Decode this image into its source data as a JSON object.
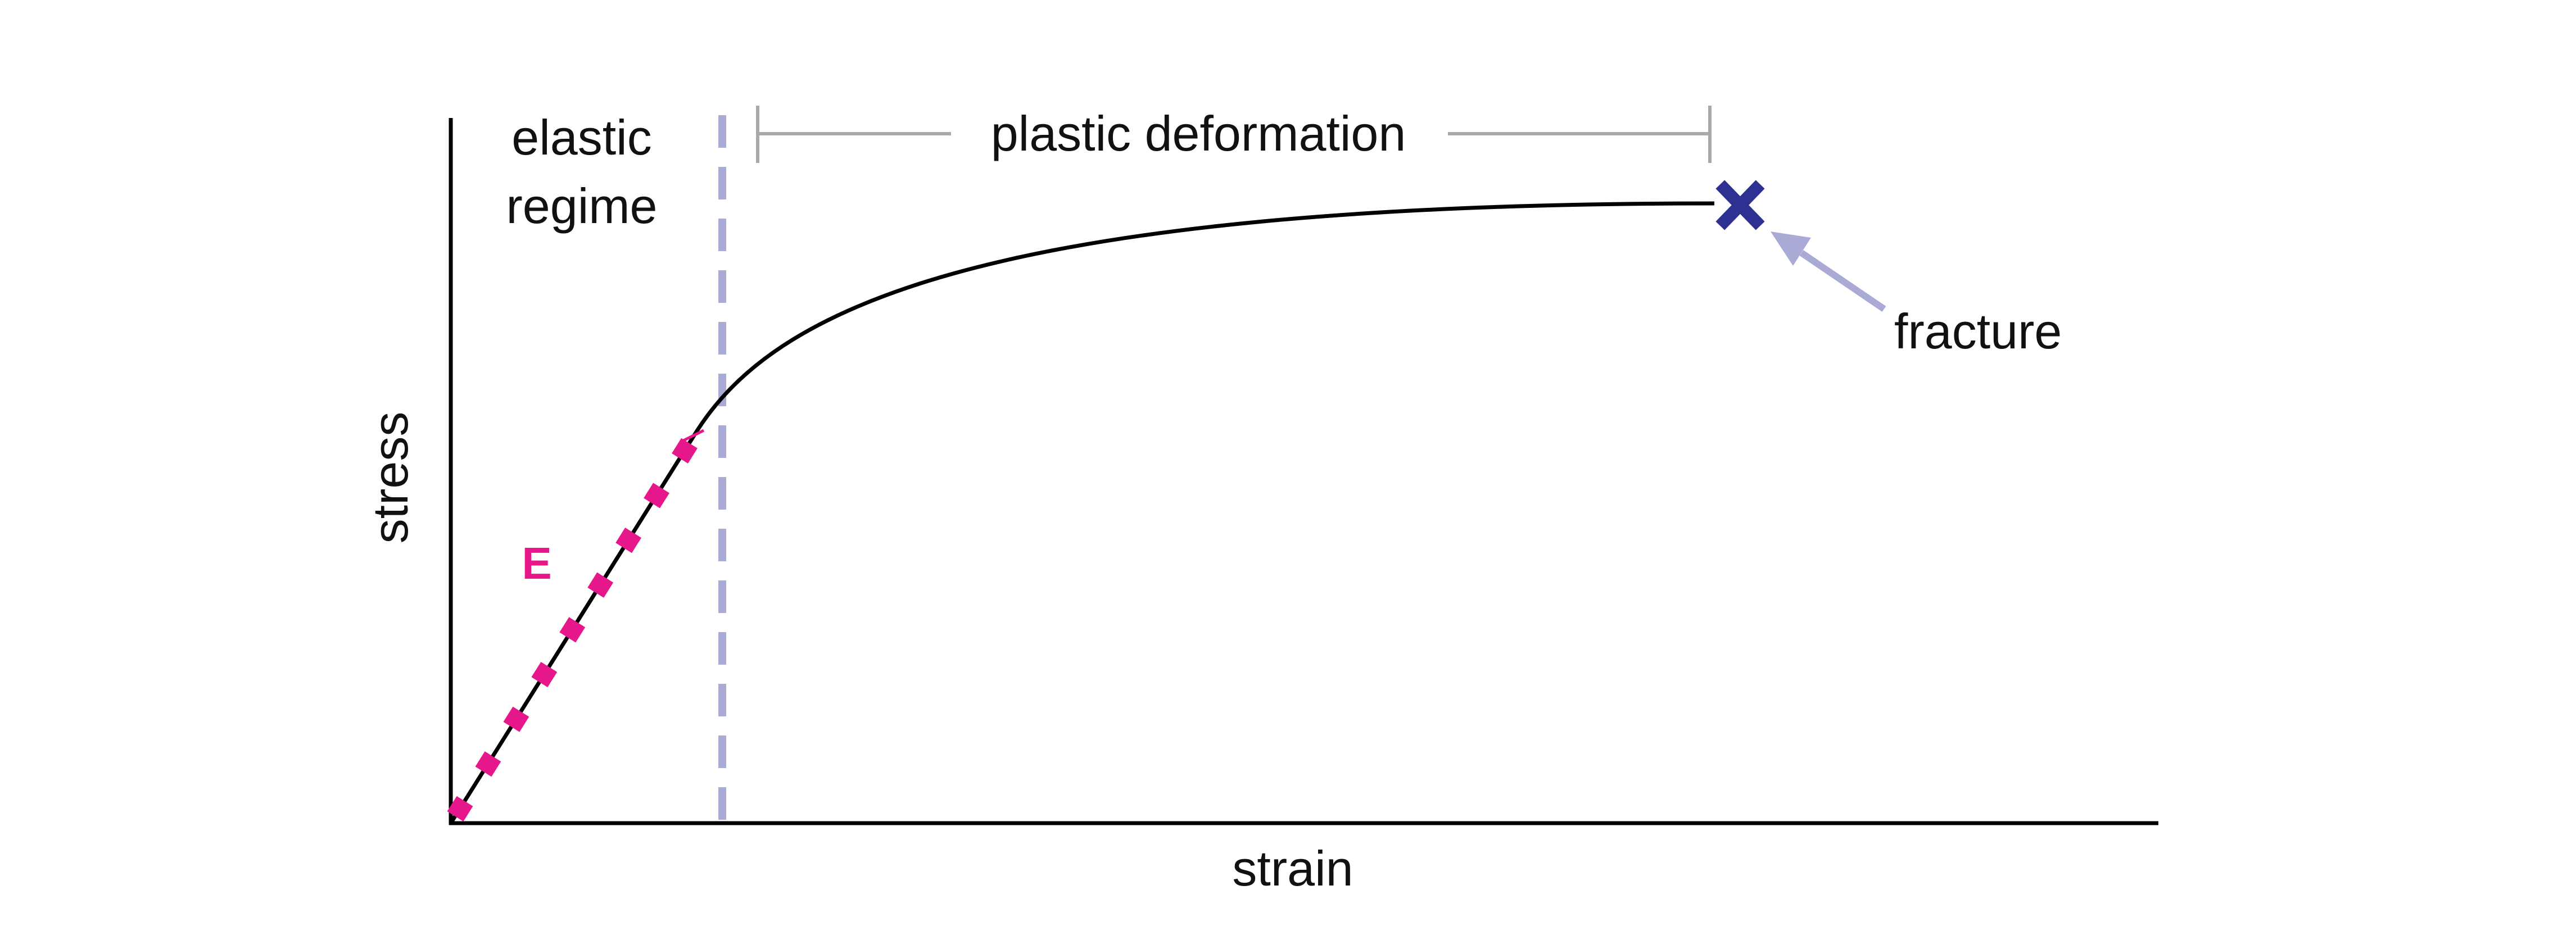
{
  "labels": {
    "x_axis": "strain",
    "y_axis": "stress",
    "elastic_line1": "elastic",
    "elastic_line2": "regime",
    "plastic": "plastic deformation",
    "fracture": "fracture",
    "modulus": "E"
  },
  "colors": {
    "axis": "#000000",
    "curve": "#000000",
    "modulus_dash": "#e5178a",
    "boundary_dash": "#aaaad6",
    "bracket": "#a9a9a9",
    "fracture_marker": "#2e3192",
    "arrow": "#aaaad6",
    "text": "#111111"
  },
  "icons": {
    "fracture_marker": "x-mark-icon",
    "pointer": "arrow-icon"
  }
}
